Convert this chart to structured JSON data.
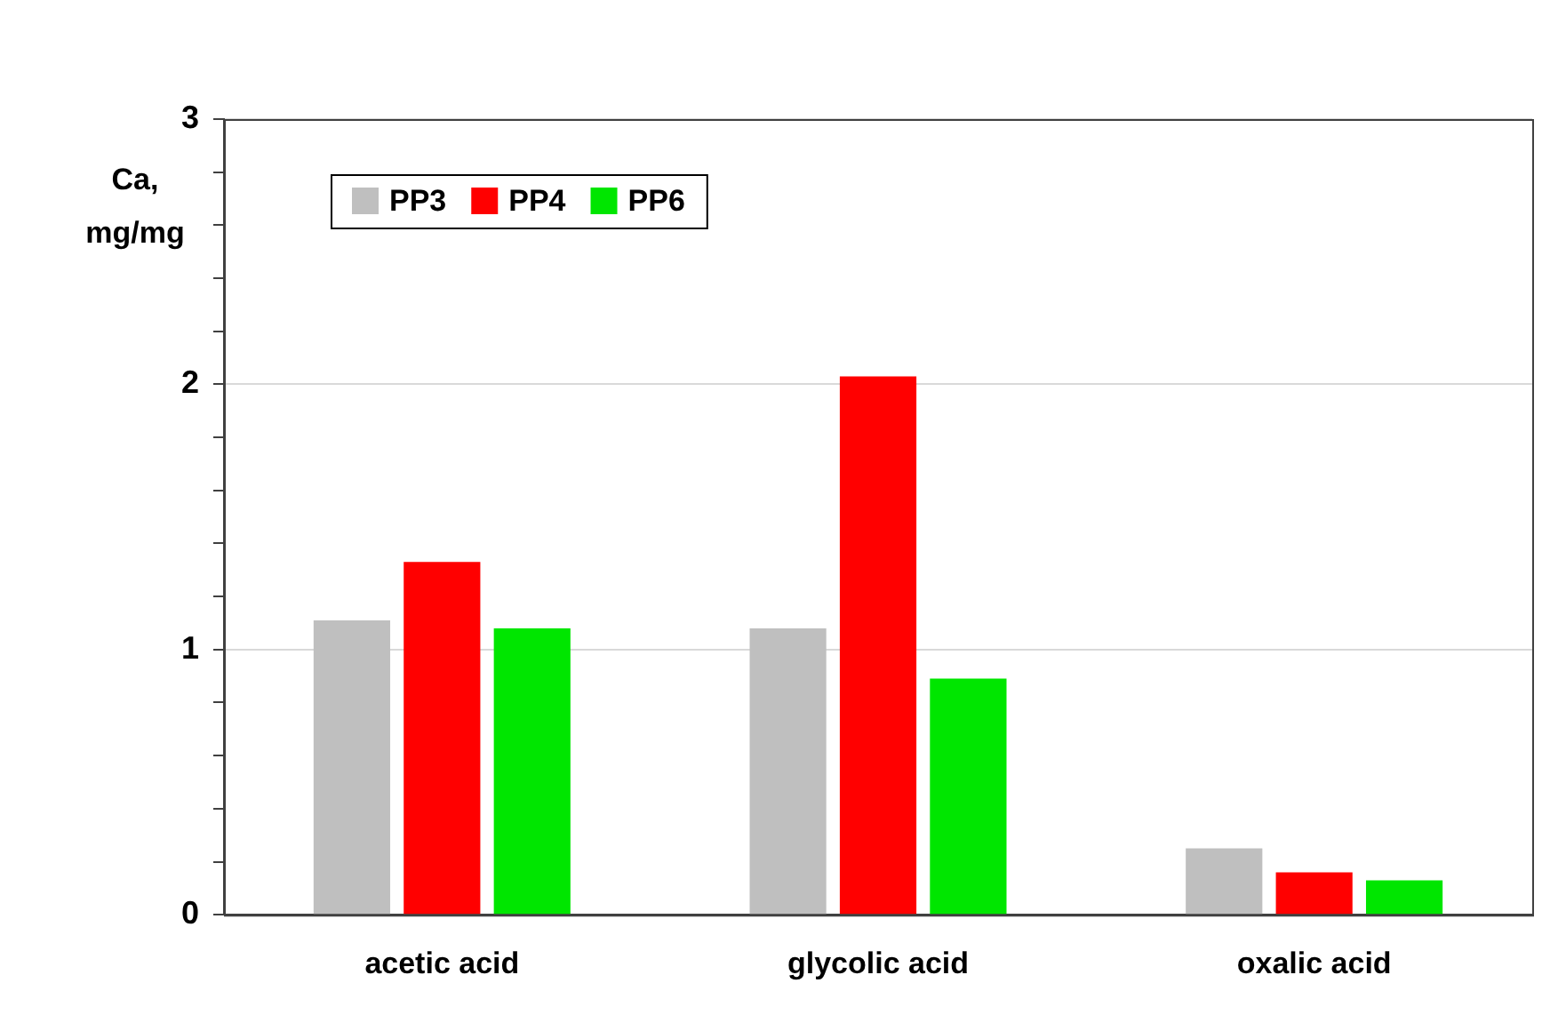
{
  "chart_data": {
    "type": "bar",
    "ylabel": "Ca, mg/mg",
    "categories": [
      "acetic acid",
      "glycolic acid",
      "oxalic acid"
    ],
    "series": [
      {
        "name": "PP3",
        "color": "#bfbfbf",
        "values": [
          1.11,
          1.08,
          0.25
        ]
      },
      {
        "name": "PP4",
        "color": "#ff0000",
        "values": [
          1.33,
          2.03,
          0.16
        ]
      },
      {
        "name": "PP6",
        "color": "#00e600",
        "values": [
          1.08,
          0.89,
          0.13
        ]
      }
    ],
    "ylim": [
      0,
      3
    ],
    "yticks": [
      0,
      {
        "value": 0.2,
        "label": null
      },
      {
        "value": 0.4,
        "label": null
      },
      {
        "value": 0.6,
        "label": null
      },
      {
        "value": 0.8,
        "label": null
      },
      1,
      {
        "value": 1.2,
        "label": null
      },
      {
        "value": 1.4,
        "label": null
      },
      {
        "value": 1.6,
        "label": null
      },
      {
        "value": 1.8,
        "label": null
      },
      2,
      {
        "value": 2.2,
        "label": null
      },
      {
        "value": 2.4,
        "label": null
      },
      {
        "value": 2.6,
        "label": null
      },
      {
        "value": 2.8,
        "label": null
      },
      3
    ],
    "grid": "y",
    "legend": "top left"
  }
}
